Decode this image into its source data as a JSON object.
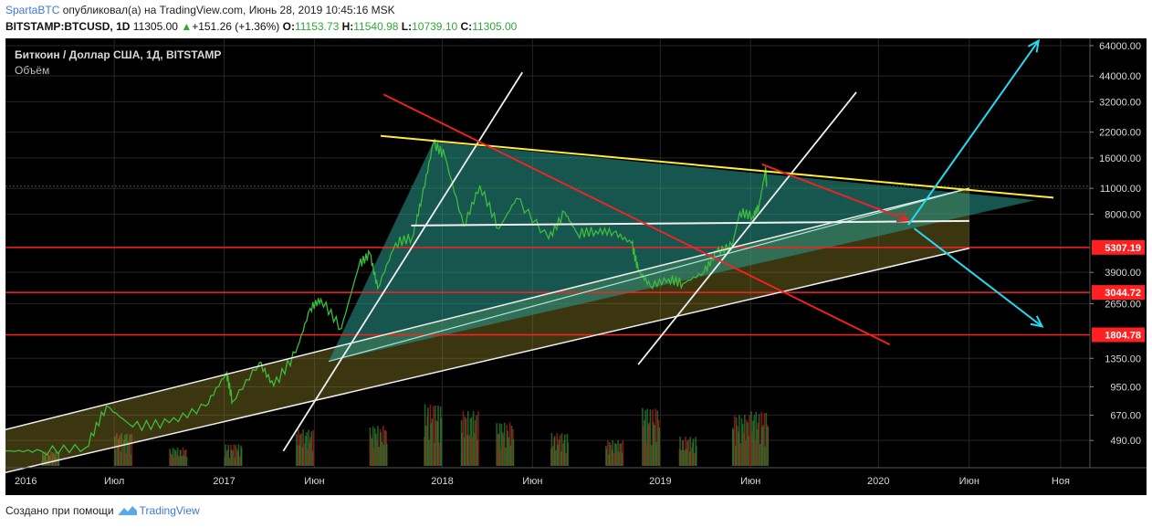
{
  "header": {
    "author": "SpartaBTC",
    "published_text": " опубликовал(а) на TradingView.com, Июнь 28, 2019 10:45:16 MSK",
    "symbol": "BITSTAMP:BTCUSD, 1D",
    "price": "11305.00",
    "change_arrow": "▲",
    "change": "+151.26 (+1.36%)",
    "o_label": "O:",
    "o_value": "11153.73",
    "h_label": "H:",
    "h_value": "11540.98",
    "l_label": "L:",
    "l_value": "10739.10",
    "c_label": "C:",
    "c_value": "11305.00"
  },
  "legend": {
    "title": "Биткоин / Доллар США, 1Д, BITSTAMP",
    "volume_label": "Объём"
  },
  "footer": {
    "created_with": "Создано при помощи",
    "brand": "TradingView"
  },
  "colors": {
    "background": "#000000",
    "grid": "#262626",
    "axis_text": "#d9d9d9",
    "price_line": "#3dbb3d",
    "support_red": "#ff2020",
    "trend_yellow": "#ffeb3b",
    "channel_white": "#f0f0f0",
    "arrow_cyan": "#26d9f0",
    "arrow_red": "#e8242a",
    "triangle_fill": "#2a9d8f",
    "channel_fill": "#9a8b2a",
    "vol_up": "#2e7d32",
    "vol_down": "#b71c1c"
  },
  "chart_data": {
    "type": "line",
    "symbol": "BITSTAMP:BTCUSD",
    "timeframe": "1D",
    "y_scale": "log",
    "ylim": [
      350,
      70000
    ],
    "x_range": [
      "2016-01-01",
      "2020-12-20"
    ],
    "x_ticks": [
      {
        "date": "2016-01-01",
        "label": "2016"
      },
      {
        "date": "2016-07-01",
        "label": "Июл"
      },
      {
        "date": "2017-01-01",
        "label": "2017"
      },
      {
        "date": "2017-06-01",
        "label": "Июн"
      },
      {
        "date": "2018-01-01",
        "label": "2018"
      },
      {
        "date": "2018-06-01",
        "label": "Июн"
      },
      {
        "date": "2019-01-01",
        "label": "2019"
      },
      {
        "date": "2019-06-01",
        "label": "Июн"
      },
      {
        "date": "2020-01-01",
        "label": "2020"
      },
      {
        "date": "2020-06-01",
        "label": "Июн"
      },
      {
        "date": "2020-11-01",
        "label": "Ноя"
      }
    ],
    "y_ticks": [
      {
        "value": 64000,
        "label": "64000.00"
      },
      {
        "value": 44000,
        "label": "44000.00"
      },
      {
        "value": 32000,
        "label": "32000.00"
      },
      {
        "value": 22000,
        "label": "22000.00"
      },
      {
        "value": 16000,
        "label": "16000.00"
      },
      {
        "value": 11000,
        "label": "11000.00"
      },
      {
        "value": 8000,
        "label": "8000.00"
      },
      {
        "value": 3900,
        "label": "3900.00"
      },
      {
        "value": 2650,
        "label": "2650.00"
      },
      {
        "value": 1350,
        "label": "1350.00"
      },
      {
        "value": 950,
        "label": "950.00"
      },
      {
        "value": 670,
        "label": "670.00"
      },
      {
        "value": 490,
        "label": "490.00"
      }
    ],
    "price_labels": [
      {
        "value": 5307.19,
        "label": "5307.19"
      },
      {
        "value": 3044.72,
        "label": "3044.72"
      },
      {
        "value": 1804.78,
        "label": "1804.78"
      }
    ],
    "current_price": 11305.0,
    "series": [
      {
        "x": [
          "2016-01-01",
          "2016-03-01",
          "2016-05-15",
          "2016-06-18",
          "2016-08-01",
          "2016-10-01",
          "2016-12-01",
          "2017-01-05",
          "2017-01-15",
          "2017-03-01",
          "2017-03-25",
          "2017-05-01",
          "2017-05-25",
          "2017-06-12",
          "2017-07-16",
          "2017-08-15",
          "2017-09-02",
          "2017-09-15",
          "2017-10-15",
          "2017-11-12",
          "2017-11-28",
          "2017-12-17",
          "2018-01-05",
          "2018-02-06",
          "2018-03-05",
          "2018-04-06",
          "2018-05-05",
          "2018-06-28",
          "2018-07-25",
          "2018-08-15",
          "2018-09-15",
          "2018-10-15",
          "2018-11-14",
          "2018-11-25",
          "2018-12-15",
          "2019-01-15",
          "2019-02-08",
          "2019-03-15",
          "2019-04-05",
          "2019-05-01",
          "2019-05-14",
          "2019-06-05",
          "2019-06-15",
          "2019-06-26",
          "2019-06-28"
        ],
        "values": [
          430,
          430,
          450,
          750,
          580,
          610,
          750,
          1130,
          790,
          1280,
          960,
          1450,
          2500,
          2800,
          1950,
          4300,
          4900,
          3200,
          5600,
          6000,
          9800,
          19200,
          16500,
          6900,
          11400,
          6700,
          9700,
          5900,
          8200,
          6300,
          6500,
          6400,
          5600,
          4000,
          3300,
          3600,
          3400,
          3900,
          5000,
          5400,
          8200,
          7800,
          8800,
          13800,
          11305
        ]
      }
    ],
    "volume": {
      "x": [
        "2016-03",
        "2016-07",
        "2016-10",
        "2017-01",
        "2017-05",
        "2017-09",
        "2017-12",
        "2018-02",
        "2018-04",
        "2018-07",
        "2018-10",
        "2018-12",
        "2019-02",
        "2019-05",
        "2019-06"
      ],
      "values": [
        0.2,
        0.45,
        0.25,
        0.3,
        0.5,
        0.55,
        0.85,
        0.75,
        0.6,
        0.45,
        0.35,
        0.8,
        0.4,
        0.7,
        0.75
      ]
    }
  }
}
